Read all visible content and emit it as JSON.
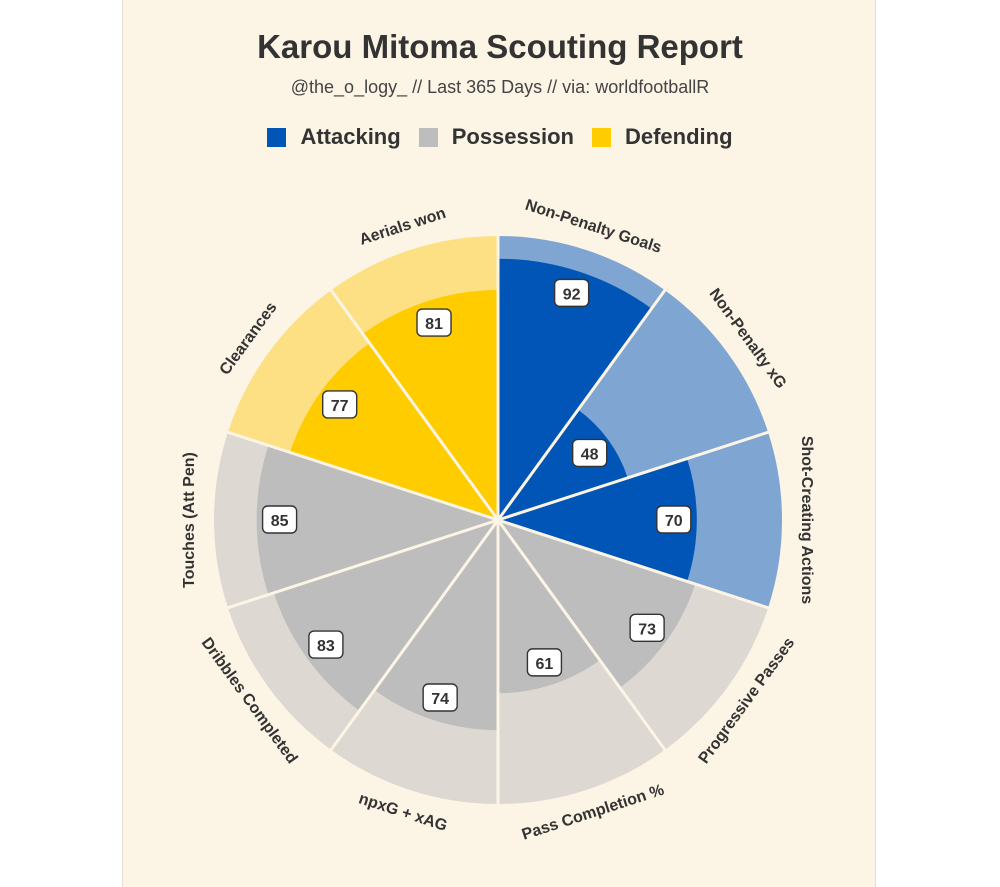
{
  "header": {
    "title": "Karou Mitoma Scouting Report",
    "subtitle": "@the_o_logy_ // Last 365 Days // via: worldfootballR"
  },
  "colors": {
    "Attacking": "#0055b7",
    "Possession": "#bdbdbd",
    "Defending": "#ffcc00",
    "Attacking_light": "#7fa5d2",
    "Possession_light": "#ddd8d2",
    "Defending_light": "#fde083",
    "background": "#fcf4e5"
  },
  "legend": [
    {
      "label": "Attacking",
      "color": "#0055b7"
    },
    {
      "label": "Possession",
      "color": "#bdbdbd"
    },
    {
      "label": "Defending",
      "color": "#ffcc00"
    }
  ],
  "chart_data": {
    "type": "pie",
    "subtype": "polar-bar (pizza)",
    "ylim": [
      0,
      100
    ],
    "categories": [
      "Non-Penalty Goals",
      "Non-Penalty xG",
      "Shot-Creating Actions",
      "Progressive Passes",
      "Pass Completion %",
      "npxG + xAG",
      "Dribbles Completed",
      "Touches (Att Pen)",
      "Clearances",
      "Aerials won"
    ],
    "values": [
      92,
      48,
      70,
      73,
      61,
      74,
      83,
      85,
      77,
      81
    ],
    "groups": [
      "Attacking",
      "Attacking",
      "Attacking",
      "Possession",
      "Possession",
      "Possession",
      "Possession",
      "Possession",
      "Defending",
      "Defending"
    ]
  }
}
